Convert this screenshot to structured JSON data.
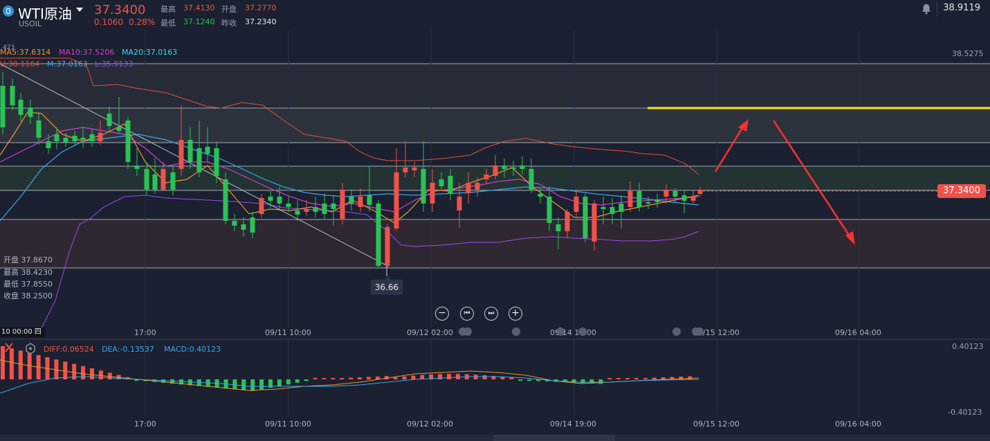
{
  "header": {
    "title": "WTI原油",
    "code": "USOIL",
    "price": "37.3400",
    "change": "0.1060",
    "change_pct": "0.28%",
    "high_label": "最高",
    "high": "37.4130",
    "open_label": "开盘",
    "open": "37.2770",
    "low_label": "最低",
    "low": "37.1240",
    "prev_label": "昨收",
    "prev": "37.2340",
    "alert_value": "38.9119"
  },
  "indicators": {
    "ma5": "MA5:37.6314",
    "ma10": "MA10:37.5206",
    "ma20": "MA20:37.0163",
    "boll_u": "U:38.1104",
    "boll_m": "M:37.0163",
    "boll_l": "L:35.9133",
    "top_left_value": "423"
  },
  "ohlc_panel": {
    "open": "开盘 37.8670",
    "high": "最高 38.4230",
    "low": "最低 37.8550",
    "close": "收盘 38.2500"
  },
  "chart": {
    "low_marker": "36.66",
    "last_price_tag": "37.3400",
    "y_top_label": "38.5275",
    "time_badge": "10 00:00 四",
    "x_ticks": [
      "17:00",
      "09/11 10:00",
      "09/12 02:00",
      "09/14 19:00",
      "09/15 12:00",
      "09/16 04:00"
    ],
    "colors": {
      "up": "#f0524a",
      "down": "#29c455",
      "ma5": "#f0952d",
      "ma10": "#d43bd4",
      "ma20": "#3aa5f0",
      "boll_u": "#e0523a",
      "boll_l": "#9a4cf0",
      "annotation": "#ffe600"
    }
  },
  "controls": {
    "minus": "−",
    "prev": "⏮",
    "next": "⏭",
    "plus": "+"
  },
  "macd": {
    "diff": "DIFF:0.06524",
    "dea": "DEA:-0.13537",
    "macd": "MACD:0.40123",
    "y_top": "0.40123",
    "y_bottom": "-0.40123",
    "x_ticks": [
      "17:00",
      "09/11 10:00",
      "09/12 02:00",
      "09/14 19:00",
      "09/15 12:00",
      "09/16 04:00"
    ]
  }
}
